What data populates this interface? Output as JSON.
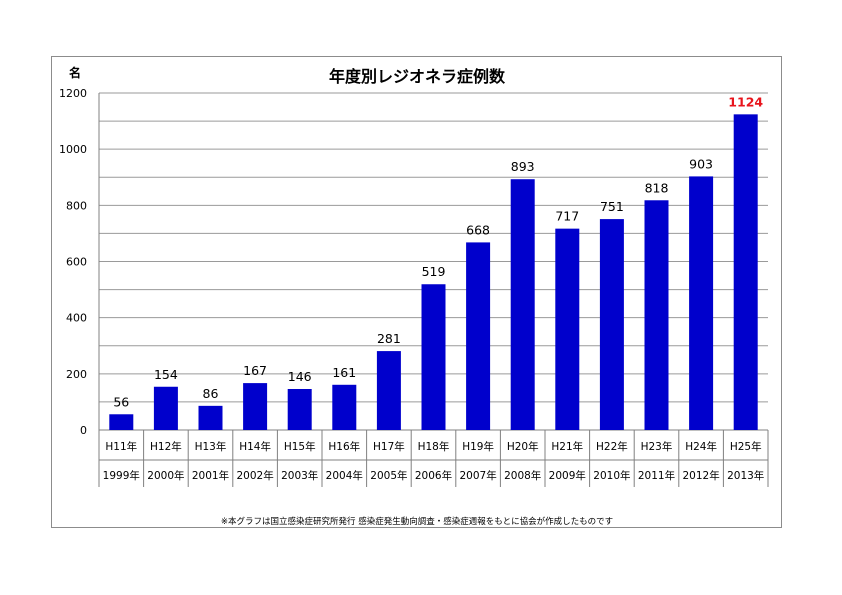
{
  "chart_data": {
    "type": "bar",
    "title": "年度別レジオネラ症例数",
    "ylabel": "名",
    "ylim": [
      0,
      1200
    ],
    "yticks": [
      "0",
      "200",
      "400",
      "600",
      "800",
      "1000",
      "1200"
    ],
    "grid": true,
    "bar_color": "#0000cc",
    "highlight_color": "#e8141c",
    "categories": [
      {
        "era": "H11年",
        "year": "1999年"
      },
      {
        "era": "H12年",
        "year": "2000年"
      },
      {
        "era": "H13年",
        "year": "2001年"
      },
      {
        "era": "H14年",
        "year": "2002年"
      },
      {
        "era": "H15年",
        "year": "2003年"
      },
      {
        "era": "H16年",
        "year": "2004年"
      },
      {
        "era": "H17年",
        "year": "2005年"
      },
      {
        "era": "H18年",
        "year": "2006年"
      },
      {
        "era": "H19年",
        "year": "2007年"
      },
      {
        "era": "H20年",
        "year": "2008年"
      },
      {
        "era": "H21年",
        "year": "2009年"
      },
      {
        "era": "H22年",
        "year": "2010年"
      },
      {
        "era": "H23年",
        "year": "2011年"
      },
      {
        "era": "H24年",
        "year": "2012年"
      },
      {
        "era": "H25年",
        "year": "2013年"
      }
    ],
    "values": [
      56,
      154,
      86,
      167,
      146,
      161,
      281,
      519,
      668,
      893,
      717,
      751,
      818,
      903,
      1124
    ],
    "highlight_last": true
  },
  "footnote": "※本グラフは国立感染症研究所発行 感染症発生動向調査・感染症週報をもとに協会が作成したものです"
}
